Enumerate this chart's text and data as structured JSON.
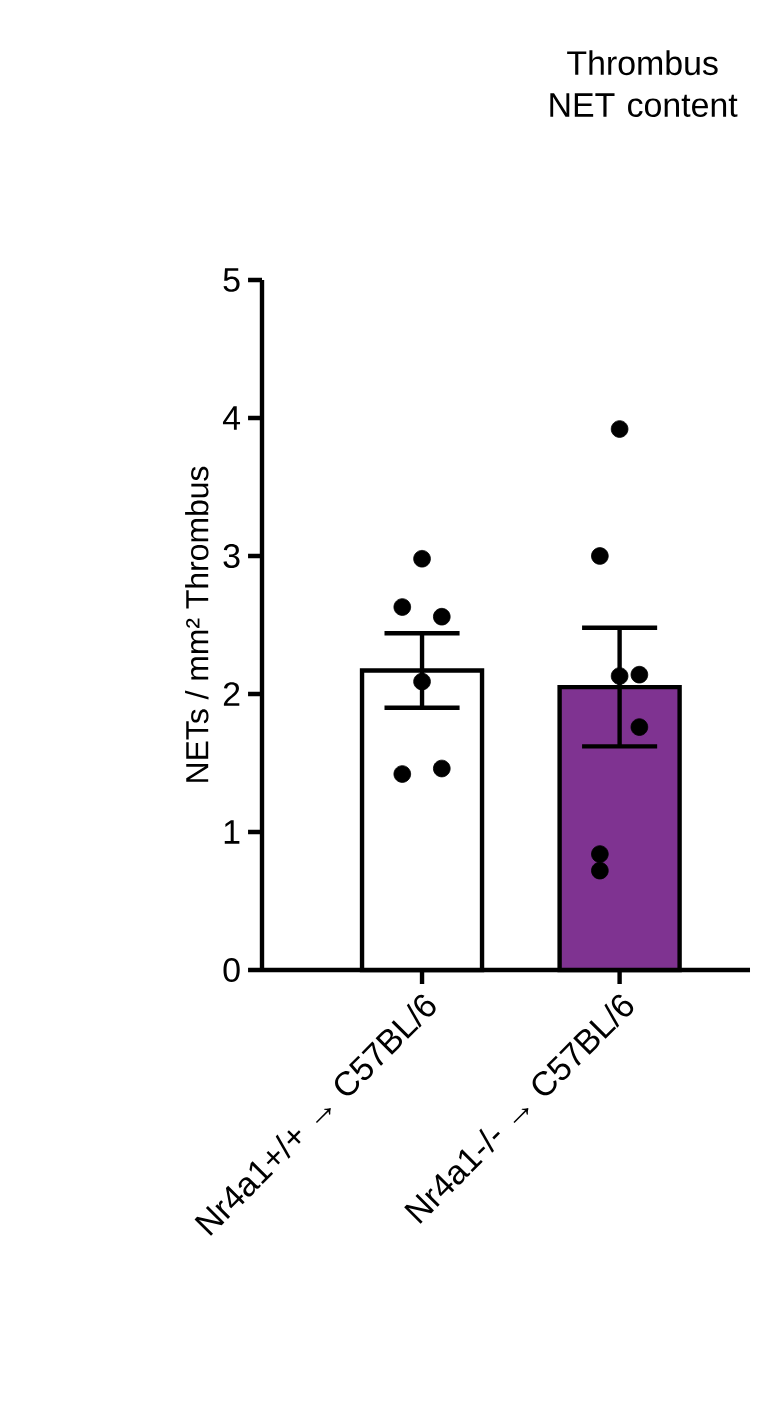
{
  "chart_data": {
    "type": "bar",
    "title": "Thrombus NET content",
    "ylabel": "NETs / mm² Thrombus",
    "categories": [
      "Nr4a1+/+ → C57BL/6",
      "Nr4a1-/- → C57BL/6"
    ],
    "values": [
      2.17,
      2.05
    ],
    "colors": [
      "#ffffff",
      "#7f3391"
    ],
    "errors": [
      0.27,
      0.43
    ],
    "ylim": [
      0,
      5
    ],
    "yticks": [
      0,
      1,
      2,
      3,
      4,
      5
    ],
    "grid": false,
    "series": [
      {
        "type": "scatter",
        "color": "#000000",
        "marker": "circle",
        "x": [
          "Nr4a1+/+ → C57BL/6",
          "Nr4a1+/+ → C57BL/6",
          "Nr4a1+/+ → C57BL/6",
          "Nr4a1+/+ → C57BL/6",
          "Nr4a1+/+ → C57BL/6",
          "Nr4a1+/+ → C57BL/6"
        ],
        "values": [
          2.98,
          2.63,
          2.56,
          2.09,
          1.46,
          1.42
        ]
      },
      {
        "type": "scatter",
        "color": "#000000",
        "marker": "circle",
        "x": [
          "Nr4a1-/- → C57BL/6",
          "Nr4a1-/- → C57BL/6",
          "Nr4a1-/- → C57BL/6",
          "Nr4a1-/- → C57BL/6",
          "Nr4a1-/- → C57BL/6",
          "Nr4a1-/- → C57BL/6",
          "Nr4a1-/- → C57BL/6"
        ],
        "values": [
          3.92,
          3.0,
          2.14,
          2.13,
          1.76,
          0.84,
          0.72
        ]
      }
    ]
  }
}
